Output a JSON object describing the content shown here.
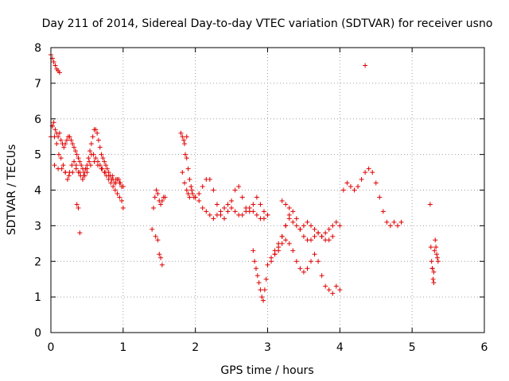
{
  "colors": {
    "points": "#e00000",
    "frame": "#000000",
    "grid": "#a0a0a0"
  },
  "chart_data": {
    "type": "scatter",
    "title": "Day 211 of 2014, Sidereal Day-to-day VTEC variation (SDTVAR) for receiver usno",
    "xlabel": "GPS time / hours",
    "ylabel": "SDTVAR / TECUs",
    "xlim": [
      0,
      6
    ],
    "ylim": [
      0,
      8
    ],
    "xticks": [
      0,
      1,
      2,
      3,
      4,
      5,
      6
    ],
    "yticks": [
      0,
      1,
      2,
      3,
      4,
      5,
      6,
      7,
      8
    ],
    "grid": true,
    "marker": "+",
    "series": [
      {
        "name": "SDTVAR",
        "x": [
          0.0,
          0.02,
          0.04,
          0.06,
          0.08,
          0.1,
          0.12,
          0.0,
          0.02,
          0.04,
          0.06,
          0.08,
          0.1,
          0.12,
          0.14,
          0.16,
          0.18,
          0.2,
          0.22,
          0.24,
          0.26,
          0.28,
          0.3,
          0.32,
          0.34,
          0.36,
          0.38,
          0.4,
          0.42,
          0.44,
          0.46,
          0.48,
          0.5,
          0.52,
          0.54,
          0.56,
          0.58,
          0.6,
          0.62,
          0.64,
          0.66,
          0.68,
          0.7,
          0.72,
          0.74,
          0.76,
          0.78,
          0.8,
          0.82,
          0.84,
          0.86,
          0.88,
          0.9,
          0.92,
          0.94,
          0.96,
          0.98,
          1.0,
          0.02,
          0.05,
          0.08,
          0.11,
          0.14,
          0.17,
          0.2,
          0.23,
          0.26,
          0.29,
          0.32,
          0.35,
          0.38,
          0.41,
          0.44,
          0.47,
          0.5,
          0.53,
          0.56,
          0.59,
          0.62,
          0.65,
          0.68,
          0.71,
          0.74,
          0.77,
          0.8,
          0.83,
          0.86,
          0.89,
          0.92,
          0.95,
          0.98,
          1.0,
          0.05,
          0.1,
          0.15,
          0.2,
          0.25,
          0.3,
          0.35,
          0.4,
          0.45,
          0.5,
          0.55,
          0.6,
          0.65,
          0.7,
          0.75,
          0.8,
          0.85,
          0.9,
          0.95,
          0.36,
          0.38,
          0.4,
          1.4,
          1.42,
          1.44,
          1.46,
          1.48,
          1.5,
          1.52,
          1.54,
          1.56,
          1.58,
          1.45,
          1.48,
          1.5,
          1.52,
          1.54,
          1.8,
          1.82,
          1.84,
          1.86,
          1.88,
          1.9,
          1.92,
          1.94,
          1.96,
          1.98,
          2.0,
          2.05,
          2.1,
          2.15,
          2.2,
          2.25,
          2.3,
          2.35,
          2.4,
          2.45,
          2.5,
          2.55,
          2.6,
          2.65,
          2.7,
          2.75,
          2.8,
          2.85,
          2.9,
          2.95,
          3.0,
          1.82,
          1.85,
          1.88,
          1.9,
          1.92,
          1.85,
          1.88,
          1.95,
          2.0,
          2.05,
          2.1,
          2.15,
          2.2,
          2.25,
          2.3,
          2.35,
          2.4,
          2.45,
          2.5,
          2.55,
          2.6,
          2.65,
          2.7,
          2.75,
          2.8,
          2.85,
          2.9,
          2.95,
          3.0,
          2.8,
          2.82,
          2.84,
          2.86,
          2.88,
          2.9,
          2.92,
          2.94,
          2.96,
          2.98,
          3.0,
          3.05,
          3.1,
          3.15,
          3.2,
          3.25,
          3.3,
          3.35,
          3.4,
          3.45,
          3.5,
          3.55,
          3.6,
          3.65,
          3.7,
          3.75,
          3.8,
          3.85,
          3.9,
          3.95,
          4.0,
          3.1,
          3.15,
          3.2,
          3.25,
          3.3,
          3.35,
          3.4,
          3.45,
          3.5,
          3.55,
          3.6,
          3.65,
          3.7,
          3.75,
          3.8,
          3.85,
          3.9,
          3.95,
          4.0,
          3.05,
          3.1,
          3.15,
          3.2,
          3.25,
          3.3,
          3.35,
          3.4,
          3.45,
          3.5,
          3.55,
          3.6,
          3.65,
          3.7,
          3.75,
          3.8,
          3.85,
          3.9,
          3.2,
          3.25,
          3.3,
          4.05,
          4.1,
          4.15,
          4.2,
          4.25,
          4.3,
          4.35,
          4.4,
          4.45,
          4.5,
          4.55,
          4.6,
          4.65,
          4.7,
          4.75,
          4.8,
          4.85,
          4.35,
          5.25,
          5.26,
          5.27,
          5.28,
          5.29,
          5.3,
          5.31,
          5.32,
          5.33,
          5.34,
          5.35,
          5.36,
          5.28,
          5.3
        ],
        "y": [
          7.8,
          7.7,
          7.6,
          7.5,
          7.4,
          7.35,
          7.3,
          5.5,
          5.8,
          5.9,
          5.7,
          5.6,
          5.5,
          5.6,
          5.4,
          5.3,
          5.2,
          5.3,
          5.4,
          5.5,
          5.5,
          5.4,
          5.3,
          5.2,
          5.1,
          5.0,
          4.9,
          4.8,
          4.7,
          4.6,
          4.5,
          4.6,
          4.7,
          4.9,
          5.1,
          5.3,
          5.5,
          5.7,
          5.7,
          5.6,
          5.4,
          5.2,
          5.0,
          4.9,
          4.8,
          4.7,
          4.6,
          4.5,
          4.4,
          4.3,
          4.3,
          4.2,
          4.2,
          4.3,
          4.3,
          4.2,
          4.1,
          4.1,
          5.8,
          5.5,
          5.3,
          5.0,
          4.9,
          4.7,
          4.5,
          4.3,
          4.5,
          4.7,
          4.8,
          4.7,
          4.5,
          4.4,
          4.3,
          4.4,
          4.6,
          4.8,
          5.0,
          5.0,
          4.9,
          4.8,
          4.7,
          4.6,
          4.5,
          4.4,
          4.3,
          4.2,
          4.1,
          4.0,
          3.9,
          3.8,
          3.7,
          3.5,
          4.7,
          4.6,
          4.6,
          4.5,
          4.4,
          4.5,
          4.6,
          4.5,
          4.4,
          4.5,
          4.7,
          4.8,
          4.7,
          4.6,
          4.5,
          4.4,
          4.4,
          4.3,
          4.2,
          3.6,
          3.5,
          2.8,
          2.9,
          3.5,
          3.8,
          4.0,
          3.9,
          3.7,
          3.6,
          3.7,
          3.8,
          3.8,
          2.7,
          2.6,
          2.2,
          2.1,
          1.9,
          5.6,
          5.5,
          5.4,
          5.0,
          4.9,
          4.6,
          4.3,
          4.1,
          3.9,
          3.8,
          3.8,
          3.7,
          3.5,
          3.4,
          3.3,
          3.2,
          3.3,
          3.4,
          3.5,
          3.6,
          3.5,
          3.4,
          3.3,
          3.3,
          3.4,
          3.5,
          3.4,
          3.3,
          3.2,
          3.2,
          3.3,
          4.5,
          4.2,
          4.0,
          3.9,
          3.8,
          5.3,
          5.5,
          4.0,
          3.8,
          3.9,
          4.1,
          4.3,
          4.3,
          4.0,
          3.6,
          3.3,
          3.2,
          3.4,
          3.7,
          4.0,
          4.1,
          3.8,
          3.5,
          3.4,
          3.6,
          3.8,
          3.6,
          3.4,
          3.3,
          2.3,
          2.0,
          1.8,
          1.6,
          1.4,
          1.2,
          1.0,
          0.9,
          1.2,
          1.5,
          1.9,
          2.1,
          2.3,
          2.5,
          2.7,
          3.0,
          3.2,
          3.1,
          3.0,
          2.9,
          3.0,
          3.1,
          3.0,
          2.9,
          2.8,
          2.7,
          2.8,
          2.9,
          3.0,
          3.1,
          3.0,
          2.2,
          2.3,
          2.5,
          2.6,
          2.5,
          2.3,
          2.0,
          1.8,
          1.7,
          1.8,
          2.0,
          2.2,
          2.0,
          1.6,
          1.3,
          1.2,
          1.1,
          1.3,
          1.2,
          2.0,
          2.2,
          2.4,
          2.7,
          3.0,
          3.3,
          3.4,
          3.2,
          2.9,
          2.7,
          2.6,
          2.6,
          2.7,
          2.8,
          2.7,
          2.6,
          2.6,
          2.7,
          3.7,
          3.6,
          3.5,
          4.0,
          4.2,
          4.1,
          4.0,
          4.1,
          4.3,
          4.5,
          4.6,
          4.5,
          4.2,
          3.8,
          3.4,
          3.1,
          3.0,
          3.1,
          3.0,
          3.1,
          7.5,
          3.6,
          2.4,
          2.0,
          1.8,
          1.5,
          1.4,
          2.3,
          2.6,
          2.4,
          2.2,
          2.1,
          2.0,
          1.8,
          1.7
        ]
      }
    ]
  }
}
